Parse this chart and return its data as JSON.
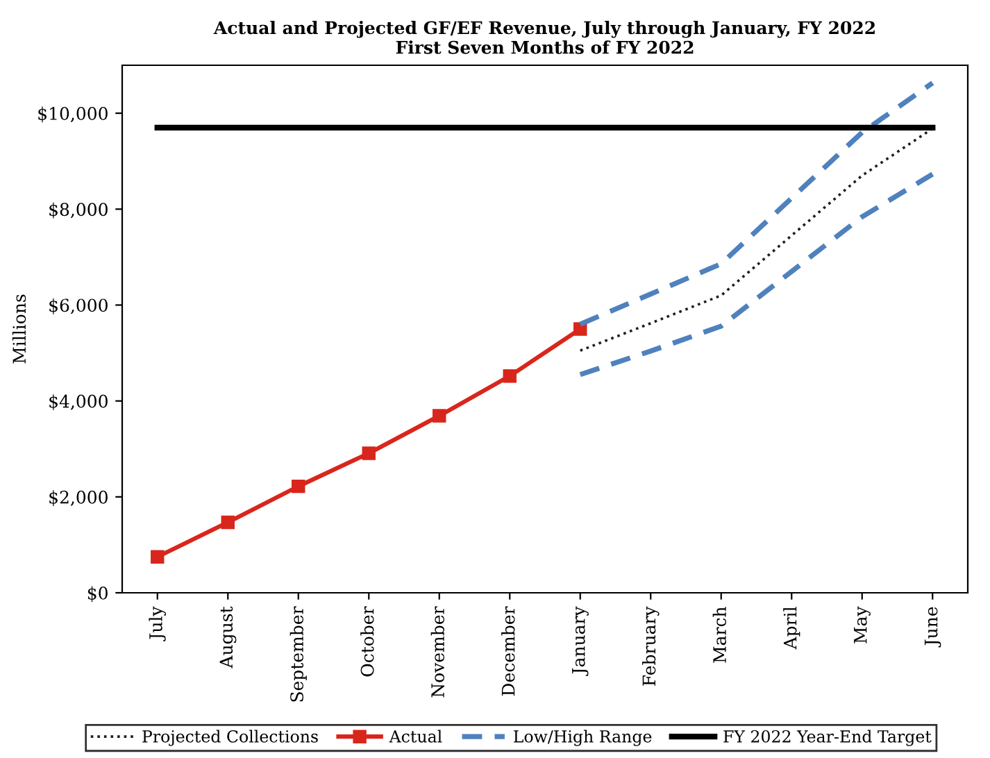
{
  "chart_data": {
    "type": "line",
    "title": "Actual and Projected GF/EF Revenue, July through January, FY 2022\nFirst Seven Months of FY 2022",
    "ylabel": "Millions",
    "categories": [
      "July",
      "August",
      "September",
      "October",
      "November",
      "December",
      "January",
      "February",
      "March",
      "April",
      "May",
      "June"
    ],
    "series": [
      {
        "name": "Projected Collections",
        "color": "#1f1f1f",
        "line_style": "dotted",
        "marker": "none",
        "values": [
          null,
          null,
          null,
          null,
          null,
          null,
          5050,
          5620,
          6200,
          7450,
          8700,
          9680
        ]
      },
      {
        "name": "Actual",
        "color": "#d9261c",
        "line_style": "solid",
        "marker": "square",
        "values": [
          750,
          1470,
          2220,
          2910,
          3690,
          4520,
          5500,
          null,
          null,
          null,
          null,
          null
        ]
      },
      {
        "name": "Low/High Range",
        "color": "#4f81bd",
        "line_style": "dashed",
        "marker": "none",
        "values": [
          null,
          null,
          null,
          null,
          null,
          null,
          5600,
          6230,
          6860,
          8230,
          9600,
          10630
        ]
      },
      {
        "color": "#4f81bd",
        "line_style": "dashed",
        "marker": "none",
        "values": [
          null,
          null,
          null,
          null,
          null,
          null,
          4550,
          5040,
          5560,
          6700,
          7840,
          8730
        ]
      },
      {
        "name": "FY 2022 Year-End Target",
        "color": "#000000",
        "line_style": "solid",
        "marker": "none",
        "values": [
          9700,
          9700,
          9700,
          9700,
          9700,
          9700,
          9700,
          9700,
          9700,
          9700,
          9700,
          9700
        ]
      }
    ],
    "ylim": [
      0,
      11000
    ],
    "yticks": [
      {
        "value": 0,
        "label": "$0"
      },
      {
        "value": 2000,
        "label": "$2,000"
      },
      {
        "value": 4000,
        "label": "$4,000"
      },
      {
        "value": 6000,
        "label": "$6,000"
      },
      {
        "value": 8000,
        "label": "$8,000"
      },
      {
        "value": 10000,
        "label": "$10,000"
      }
    ],
    "legend": "bottom"
  }
}
